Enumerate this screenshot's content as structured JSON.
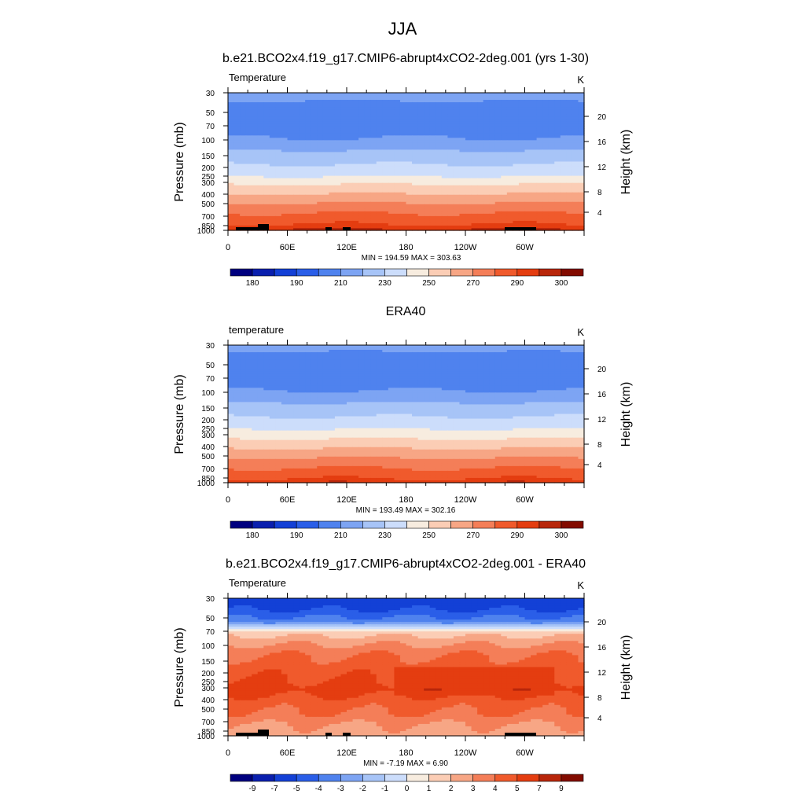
{
  "figure": {
    "title": "JJA"
  },
  "palette": [
    "#00007f",
    "#0a1fae",
    "#1340d6",
    "#2a5ee8",
    "#4f82ee",
    "#7da4f3",
    "#a7c4f7",
    "#ccddfb",
    "#f7ecdf",
    "#fbcdb5",
    "#f7a685",
    "#f47e58",
    "#f05a2c",
    "#e43d10",
    "#b8260a",
    "#820b00"
  ],
  "chart_data": [
    {
      "type": "heatmap",
      "panel_title": "b.e21.BCO2x4.f19_g17.CMIP6-abrupt4xCO2-2deg.001 (yrs 1-30)",
      "variable": "Temperature",
      "unit": "K",
      "xlabel": "",
      "ylabel": "Pressure (mb)",
      "ylabel_right": "Height (km)",
      "x_ticks": [
        "0",
        "60E",
        "120E",
        "180",
        "120W",
        "60W"
      ],
      "x_range": [
        0,
        360
      ],
      "y_ticks": [
        "30",
        "50",
        "70",
        "100",
        "150",
        "200",
        "250",
        "300",
        "400",
        "500",
        "700",
        "850",
        "1000"
      ],
      "y_right_ticks": [
        "20",
        "16",
        "12",
        "8",
        "4"
      ],
      "stats": "MIN = 194.59  MAX = 303.63",
      "min": 194.59,
      "max": 303.63,
      "levels": [
        175,
        180,
        185,
        190,
        200,
        210,
        220,
        230,
        240,
        250,
        260,
        270,
        280,
        290,
        295,
        300,
        305
      ],
      "colorbar_labels": [
        "180",
        "190",
        "210",
        "230",
        "250",
        "270",
        "290",
        "300"
      ],
      "profile": [
        215,
        208,
        205,
        207,
        210,
        220,
        228,
        236,
        250,
        262,
        275,
        285,
        296
      ]
    },
    {
      "type": "heatmap",
      "panel_title": "ERA40",
      "variable": "temperature",
      "unit": "K",
      "xlabel": "",
      "ylabel": "Pressure (mb)",
      "ylabel_right": "Height (km)",
      "x_ticks": [
        "0",
        "60E",
        "120E",
        "180",
        "120W",
        "60W"
      ],
      "x_range": [
        0,
        360
      ],
      "y_ticks": [
        "30",
        "50",
        "70",
        "100",
        "150",
        "200",
        "250",
        "300",
        "400",
        "500",
        "700",
        "850",
        "1000"
      ],
      "y_right_ticks": [
        "20",
        "16",
        "12",
        "8",
        "4"
      ],
      "stats": "MIN = 193.49  MAX = 302.16",
      "min": 193.49,
      "max": 302.16,
      "levels": [
        175,
        180,
        185,
        190,
        200,
        210,
        220,
        230,
        240,
        250,
        260,
        270,
        280,
        290,
        295,
        300,
        305
      ],
      "colorbar_labels": [
        "180",
        "190",
        "210",
        "230",
        "250",
        "270",
        "290",
        "300"
      ],
      "profile": [
        214,
        207,
        204,
        206,
        210,
        220,
        228,
        236,
        248,
        260,
        272,
        283,
        294
      ]
    },
    {
      "type": "heatmap",
      "panel_title": "b.e21.BCO2x4.f19_g17.CMIP6-abrupt4xCO2-2deg.001 - ERA40",
      "variable": "Temperature",
      "unit": "K",
      "xlabel": "",
      "ylabel": "Pressure (mb)",
      "ylabel_right": "Height (km)",
      "x_ticks": [
        "0",
        "60E",
        "120E",
        "180",
        "120W",
        "60W"
      ],
      "x_range": [
        0,
        360
      ],
      "y_ticks": [
        "30",
        "50",
        "70",
        "100",
        "150",
        "200",
        "250",
        "300",
        "400",
        "500",
        "700",
        "850",
        "1000"
      ],
      "y_right_ticks": [
        "20",
        "16",
        "12",
        "8",
        "4"
      ],
      "stats": "MIN = -7.19  MAX =  6.90",
      "min": -7.19,
      "max": 6.9,
      "levels": [
        -11,
        -9,
        -7,
        -5,
        -4,
        -3,
        -2,
        -1,
        0,
        1,
        2,
        3,
        4,
        5,
        7,
        9,
        11
      ],
      "colorbar_labels": [
        "-9",
        "-7",
        "-5",
        "-4",
        "-3",
        "-2",
        "-1",
        "0",
        "1",
        "2",
        "3",
        "4",
        "5",
        "7",
        "9"
      ],
      "profile": [
        -6,
        -5,
        -3.5,
        1.5,
        3,
        4,
        4.5,
        5,
        5.5,
        4.5,
        4,
        3,
        2.5
      ]
    }
  ]
}
